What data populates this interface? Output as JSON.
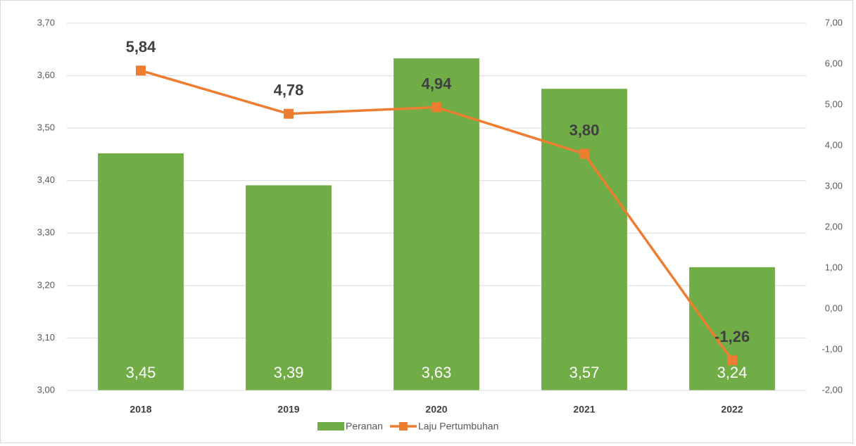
{
  "chart_data": {
    "type": "bar-line",
    "categories": [
      "2018",
      "2019",
      "2020",
      "2021",
      "2022"
    ],
    "series": [
      {
        "name": "Peranan",
        "type": "bar",
        "color": "#70ad47",
        "values": [
          3.452,
          3.391,
          3.633,
          3.575,
          3.235
        ],
        "value_labels": [
          "3,45",
          "3,39",
          "3,63",
          "3,57",
          "3,24"
        ]
      },
      {
        "name": "Laju Pertumbuhan",
        "type": "line",
        "axis": "y2",
        "color": "#ed7d31",
        "values": [
          5.84,
          4.78,
          4.94,
          3.8,
          -1.26
        ],
        "value_labels": [
          "5,84",
          "4,78",
          "4,94",
          "3,80",
          "-1,26"
        ]
      }
    ],
    "ylim": [
      3.0,
      3.7
    ],
    "yticks": [
      {
        "value": 3.0,
        "label": "3,00"
      },
      {
        "value": 3.1,
        "label": "3,10"
      },
      {
        "value": 3.2,
        "label": "3,20"
      },
      {
        "value": 3.3,
        "label": "3,30"
      },
      {
        "value": 3.4,
        "label": "3,40"
      },
      {
        "value": 3.5,
        "label": "3,50"
      },
      {
        "value": 3.6,
        "label": "3,60"
      },
      {
        "value": 3.7,
        "label": "3,70"
      }
    ],
    "y2lim": [
      -2.0,
      7.0
    ],
    "y2ticks": [
      {
        "value": -2.0,
        "label": "-2,00"
      },
      {
        "value": -1.0,
        "label": "-1,00"
      },
      {
        "value": 0.0,
        "label": "0,00"
      },
      {
        "value": 1.0,
        "label": "1,00"
      },
      {
        "value": 2.0,
        "label": "2,00"
      },
      {
        "value": 3.0,
        "label": "3,00"
      },
      {
        "value": 4.0,
        "label": "4,00"
      },
      {
        "value": 5.0,
        "label": "5,00"
      },
      {
        "value": 6.0,
        "label": "6,00"
      },
      {
        "value": 7.0,
        "label": "7,00"
      }
    ],
    "grid": true,
    "legend": "bottom"
  }
}
